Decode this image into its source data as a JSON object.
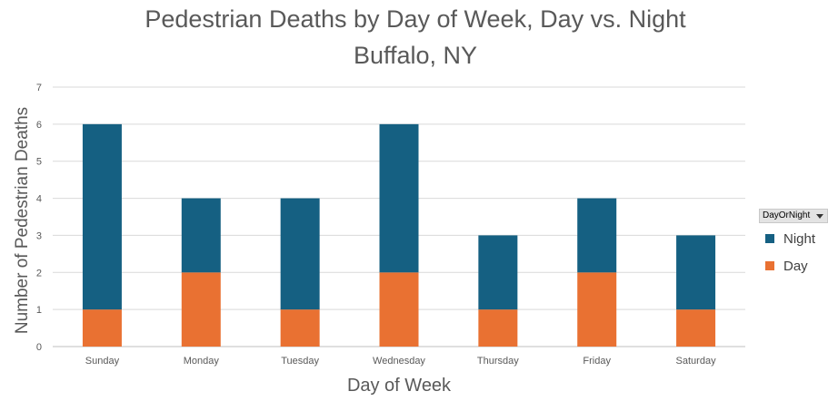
{
  "chart_data": {
    "type": "bar",
    "stacked": true,
    "title": "Pedestrian Deaths by Day of Week, Day vs. Night",
    "subtitle": "Buffalo, NY",
    "xlabel": "Day of Week",
    "ylabel": "Number of Pedestrian Deaths",
    "ylim": [
      0,
      7
    ],
    "yticks": [
      0,
      1,
      2,
      3,
      4,
      5,
      6,
      7
    ],
    "grid": true,
    "categories": [
      "Sunday",
      "Monday",
      "Tuesday",
      "Wednesday",
      "Thursday",
      "Friday",
      "Saturday"
    ],
    "series": [
      {
        "name": "Day",
        "color": "#E97132",
        "values": [
          1,
          2,
          1,
          2,
          1,
          2,
          1
        ]
      },
      {
        "name": "Night",
        "color": "#156082",
        "values": [
          5,
          2,
          3,
          4,
          2,
          2,
          2
        ]
      }
    ],
    "legend_title": "DayOrNight",
    "legend_order": [
      "Night",
      "Day"
    ],
    "legend_position": "right"
  }
}
